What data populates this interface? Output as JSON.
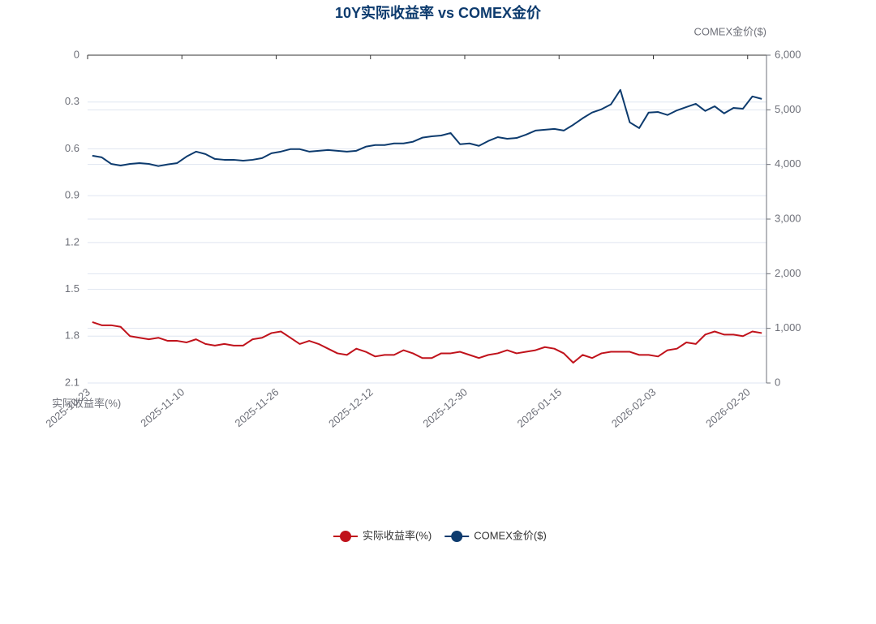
{
  "chart_data": {
    "type": "line",
    "title": "10Y实际收益率 vs COMEX金价",
    "y_axis_label": "实际收益率(%)",
    "y2_axis_label": "COMEX金价($)",
    "categories": [
      "2025-10-23",
      null,
      null,
      null,
      null,
      null,
      null,
      null,
      null,
      null,
      "2025-11-10",
      null,
      null,
      null,
      null,
      null,
      null,
      null,
      null,
      null,
      "2025-11-26",
      null,
      null,
      null,
      null,
      null,
      null,
      null,
      null,
      null,
      "2025-12-12",
      null,
      null,
      null,
      null,
      null,
      null,
      null,
      null,
      null,
      "2025-12-30",
      null,
      null,
      null,
      null,
      null,
      null,
      null,
      null,
      null,
      "2026-01-15",
      null,
      null,
      null,
      null,
      null,
      null,
      null,
      null,
      null,
      "2026-02-03",
      null,
      null,
      null,
      null,
      null,
      null,
      null,
      null,
      null,
      "2026-02-20",
      null
    ],
    "ylim": [
      2.1,
      0
    ],
    "yticks": [
      0,
      0.3,
      0.6,
      0.9,
      1.2,
      1.5,
      1.8,
      2.1
    ],
    "y2lim": [
      0,
      6000
    ],
    "y2ticks": [
      0,
      {
        "value": 1000,
        "label": "1,000"
      },
      {
        "value": 2000,
        "label": "2,000"
      },
      {
        "value": 3000,
        "label": "3,000"
      },
      {
        "value": 4000,
        "label": "4,000"
      },
      {
        "value": 5000,
        "label": "5,000"
      },
      {
        "value": 6000,
        "label": "6,000"
      }
    ],
    "grid": true,
    "legend": "bottom",
    "series": [
      {
        "name": "实际收益率(%)",
        "color": "#c0121b",
        "axis": "y",
        "values": [
          1.71,
          1.73,
          1.73,
          1.74,
          1.8,
          1.81,
          1.82,
          1.81,
          1.83,
          1.83,
          1.84,
          1.82,
          1.85,
          1.86,
          1.85,
          1.86,
          1.86,
          1.82,
          1.81,
          1.78,
          1.77,
          1.81,
          1.85,
          1.83,
          1.85,
          1.88,
          1.91,
          1.92,
          1.88,
          1.9,
          1.93,
          1.92,
          1.92,
          1.89,
          1.91,
          1.94,
          1.94,
          1.91,
          1.91,
          1.9,
          1.92,
          1.94,
          1.92,
          1.91,
          1.89,
          1.91,
          1.9,
          1.89,
          1.87,
          1.88,
          1.91,
          1.97,
          1.92,
          1.94,
          1.91,
          1.9,
          1.9,
          1.9,
          1.92,
          1.92,
          1.93,
          1.89,
          1.88,
          1.84,
          1.85,
          1.79,
          1.77,
          1.79,
          1.79,
          1.8,
          1.77,
          1.78
        ]
      },
      {
        "name": "COMEX金价($)",
        "color": "#0d3b6e",
        "axis": "y2",
        "values": [
          4160,
          4130,
          4010,
          3980,
          4010,
          4025,
          4010,
          3970,
          4000,
          4025,
          4145,
          4235,
          4190,
          4100,
          4085,
          4085,
          4070,
          4085,
          4115,
          4205,
          4235,
          4280,
          4280,
          4235,
          4250,
          4265,
          4250,
          4235,
          4250,
          4325,
          4355,
          4355,
          4385,
          4385,
          4415,
          4490,
          4515,
          4530,
          4575,
          4370,
          4385,
          4340,
          4430,
          4500,
          4470,
          4485,
          4545,
          4620,
          4635,
          4650,
          4620,
          4725,
          4845,
          4950,
          5010,
          5100,
          5365,
          4770,
          4665,
          4950,
          4960,
          4905,
          4990,
          5050,
          5110,
          4980,
          5065,
          4935,
          5035,
          5020,
          5245,
          5200
        ]
      }
    ]
  }
}
